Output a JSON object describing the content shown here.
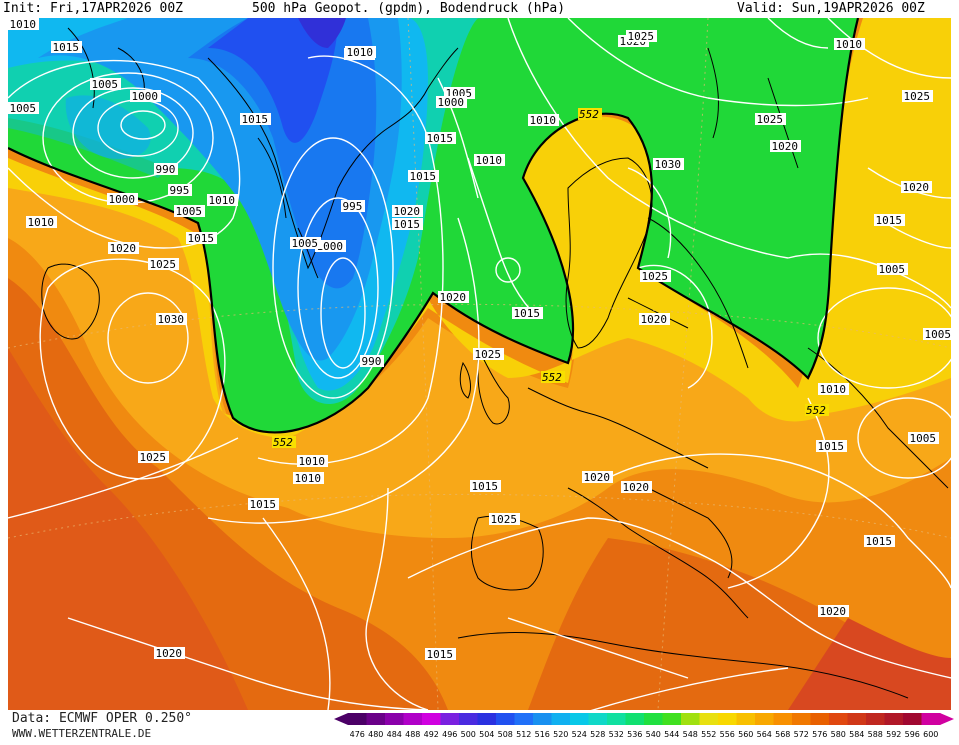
{
  "header": {
    "init": "Init: Fri,17APR2026 00Z",
    "title": "500 hPa Geopot. (gpdm), Bodendruck (hPa)",
    "valid": "Valid: Sun,19APR2026 00Z"
  },
  "footer": {
    "source": "Data: ECMWF OPER 0.250°",
    "website": "WWW.WETTERZENTRALE.DE"
  },
  "colorbar": {
    "ticks": [
      "476",
      "480",
      "484",
      "488",
      "492",
      "496",
      "500",
      "504",
      "508",
      "512",
      "516",
      "520",
      "524",
      "528",
      "532",
      "536",
      "540",
      "544",
      "548",
      "552",
      "556",
      "560",
      "564",
      "568",
      "572",
      "576",
      "580",
      "584",
      "588",
      "592",
      "596",
      "600"
    ],
    "colors": [
      "#4b0066",
      "#6a0088",
      "#8a00aa",
      "#b000c8",
      "#d000e0",
      "#7a20e0",
      "#4a2ae0",
      "#2a30e0",
      "#2050f0",
      "#2070f8",
      "#1890f0",
      "#10b0f0",
      "#08c8e8",
      "#10d8c8",
      "#10e0a0",
      "#10e070",
      "#20e040",
      "#40e020",
      "#a0e010",
      "#e8e010",
      "#f8d800",
      "#f8c000",
      "#f8a800",
      "#f89000",
      "#f07800",
      "#e86000",
      "#e04810",
      "#d03818",
      "#c02820",
      "#b01828",
      "#a00830",
      "#d000a0"
    ]
  },
  "map": {
    "pressure_labels": [
      "1015",
      "1010",
      "1020",
      "1025",
      "1005",
      "1000",
      "1015",
      "990",
      "995",
      "1000",
      "1005",
      "1010",
      "1015",
      "1020",
      "1025",
      "1030",
      "1010",
      "1015",
      "1005",
      "1000",
      "995",
      "1000",
      "1015",
      "1020",
      "1015",
      "990",
      "1005",
      "1010",
      "1020",
      "1025",
      "1015",
      "1010",
      "1010",
      "1015",
      "1005",
      "1010",
      "1025",
      "1020",
      "1020",
      "1030",
      "1025",
      "1020",
      "1015",
      "1025",
      "1010",
      "1025",
      "1020",
      "1015",
      "1005",
      "1005",
      "1005",
      "1010",
      "1015",
      "1010",
      "1015",
      "1025",
      "1020",
      "1020",
      "1015",
      "1020",
      "1015",
      "1010"
    ],
    "geopotential_labels": [
      "552",
      "552",
      "552",
      "552"
    ]
  }
}
